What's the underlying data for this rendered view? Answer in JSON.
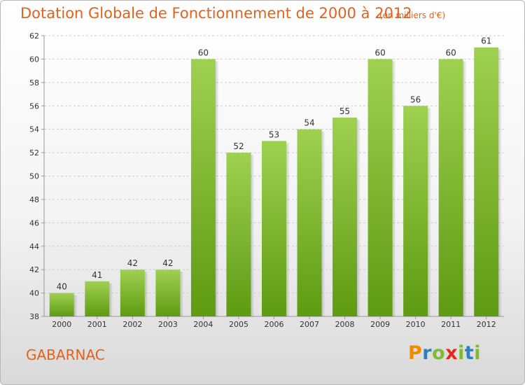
{
  "header": {
    "title": "Dotation Globale de Fonctionnement de 2000 à 2012",
    "unit": "(en milliers d'€)"
  },
  "footer": {
    "commune": "GABARNAC",
    "logo_letters": [
      {
        "char": "P",
        "color": "#f08a00"
      },
      {
        "char": "r",
        "color": "#2d7fc1"
      },
      {
        "char": "o",
        "color": "#7dbb2f"
      },
      {
        "char": "x",
        "color": "#e8261c"
      },
      {
        "char": "i",
        "color": "#7dbb2f"
      },
      {
        "char": "t",
        "color": "#2d7fc1"
      },
      {
        "char": "i",
        "color": "#7dbb2f"
      }
    ]
  },
  "colors": {
    "title": "#e2621c",
    "bar_light": "#9fd151",
    "bar_dark": "#5e9a12",
    "grid": "#cccccc",
    "text": "#333333"
  },
  "chart_data": {
    "type": "bar",
    "categories": [
      "2000",
      "2001",
      "2002",
      "2003",
      "2004",
      "2005",
      "2006",
      "2007",
      "2008",
      "2009",
      "2010",
      "2011",
      "2012"
    ],
    "values": [
      40,
      41,
      42,
      42,
      60,
      52,
      53,
      54,
      55,
      60,
      56,
      60,
      61
    ],
    "ylim": [
      38,
      62
    ],
    "yticks": [
      38,
      40,
      42,
      44,
      46,
      48,
      50,
      52,
      54,
      56,
      58,
      60,
      62
    ],
    "grid": true,
    "data_labels": true
  }
}
